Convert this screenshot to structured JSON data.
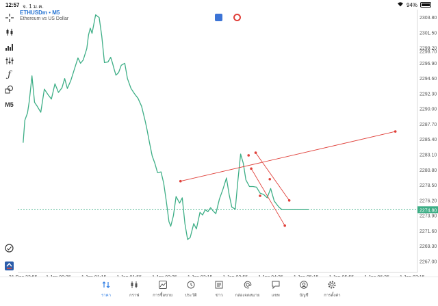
{
  "status_bar": {
    "time": "12:57",
    "date": "จ. 1 ม.ค.",
    "battery": "94%"
  },
  "symbol": {
    "name": "ETHUSDm • M5",
    "description": "Ethereum vs US Dollar"
  },
  "left_tools": [
    "crosshair-icon",
    "candles-icon",
    "bar-style-icon",
    "indicators-icon",
    "function-icon",
    "objects-icon",
    "timeframe-label"
  ],
  "timeframe": "M5",
  "chart_data": {
    "type": "line",
    "title": "",
    "color": "#3dae86",
    "current_price": "2274.80",
    "current_price_value": 2274.8,
    "ylim": [
      2265.95,
      2305.0
    ],
    "y_ticks": [
      "2303.80",
      "2301.50",
      "2299.20",
      "2298.70",
      "2296.90",
      "2294.60",
      "2292.30",
      "2290.00",
      "2287.70",
      "2285.40",
      "2283.10",
      "2280.80",
      "2278.50",
      "2276.20",
      "2273.90",
      "2271.60",
      "2269.30",
      "2267.00"
    ],
    "y_tick_values": [
      2303.8,
      2301.5,
      2299.2,
      2298.7,
      2296.9,
      2294.6,
      2292.3,
      2290.0,
      2287.7,
      2285.4,
      2283.1,
      2280.8,
      2278.5,
      2276.2,
      2273.9,
      2271.6,
      2269.3,
      2267.0
    ],
    "x_ticks": [
      "31 Dec 23:55",
      "1 Jan 00:35",
      "1 Jan 01:15",
      "1 Jan 01:55",
      "1 Jan 02:35",
      "1 Jan 03:15",
      "1 Jan 03:55",
      "1 Jan 04:35",
      "1 Jan 05:15",
      "1 Jan 05:55",
      "1 Jan 06:35",
      "1 Jan 07:15"
    ],
    "x_tick_values": [
      0,
      40,
      80,
      120,
      160,
      200,
      240,
      280,
      320,
      360,
      400,
      440
    ],
    "xlim": [
      -6,
      446
    ],
    "series": [
      {
        "x": [
          0,
          2,
          5,
          7,
          10,
          13,
          16,
          20,
          24,
          28,
          32,
          36,
          40,
          44,
          47,
          50,
          54,
          58,
          62,
          65,
          68,
          72,
          74,
          76,
          78,
          82,
          86,
          89,
          92,
          96,
          99,
          101,
          103,
          105,
          108,
          111,
          115,
          118,
          122,
          126,
          130,
          134,
          138,
          140,
          143,
          146,
          149,
          152,
          156,
          159,
          162,
          165,
          167,
          170,
          173,
          177,
          180,
          183,
          186,
          189,
          193,
          196,
          200,
          203,
          206,
          209,
          212,
          215,
          218,
          222,
          226,
          230,
          233,
          236,
          240,
          243,
          246,
          249,
          252,
          256,
          260,
          264,
          268,
          272,
          276,
          280,
          284,
          288,
          290,
          292,
          294,
          298,
          302,
          306,
          308,
          310,
          313,
          317,
          320,
          323
        ],
        "y": [
          2284.9,
          2288.3,
          2289.4,
          2291.2,
          2295.0,
          2291.0,
          2290.4,
          2289.5,
          2293.0,
          2292.2,
          2291.5,
          2293.8,
          2292.5,
          2293.2,
          2294.6,
          2293.1,
          2294.3,
          2296.0,
          2297.7,
          2296.9,
          2297.4,
          2299.1,
          2301.2,
          2302.2,
          2301.4,
          2304.2,
          2303.8,
          2301.0,
          2297.0,
          2297.1,
          2297.8,
          2297.0,
          2296.0,
          2295.1,
          2295.5,
          2296.6,
          2296.9,
          2294.6,
          2293.1,
          2292.3,
          2291.6,
          2290.4,
          2288.2,
          2287.0,
          2284.9,
          2282.9,
          2281.8,
          2280.4,
          2280.5,
          2278.8,
          2276.0,
          2273.0,
          2272.3,
          2273.9,
          2276.8,
          2275.8,
          2276.6,
          2272.7,
          2270.3,
          2270.6,
          2272.7,
          2271.9,
          2274.4,
          2274.0,
          2274.8,
          2274.5,
          2275.1,
          2274.6,
          2274.2,
          2276.4,
          2277.9,
          2279.6,
          2277.1,
          2275.2,
          2274.9,
          2279.3,
          2283.2,
          2281.8,
          2279.3,
          2278.3,
          2278.3,
          2278.2,
          2277.3,
          2277.1,
          2276.6,
          2278.0,
          2276.1,
          2275.4,
          2275.1,
          2274.9,
          2274.8,
          2274.8,
          2274.8,
          2274.8,
          2274.8,
          2274.8,
          2274.8,
          2274.8,
          2274.8,
          2274.8
        ]
      }
    ],
    "trendlines": [
      {
        "from": [
          178,
          2279.1
        ],
        "to": [
          421,
          2286.6
        ]
      },
      {
        "from": [
          263,
          2283.4
        ],
        "to": [
          301,
          2276.2
        ]
      },
      {
        "from": [
          258,
          2281.0
        ],
        "to": [
          296,
          2272.4
        ]
      }
    ],
    "trendline_color": "#e0403a",
    "trendline_points": [
      [
        178,
        2279.1
      ],
      [
        255,
        2283.0
      ],
      [
        263,
        2283.4
      ],
      [
        421,
        2286.6
      ],
      [
        258,
        2281.0
      ],
      [
        279,
        2279.4
      ],
      [
        268,
        2276.9
      ],
      [
        301,
        2276.2
      ],
      [
        296,
        2272.4
      ]
    ]
  },
  "bottom_nav": [
    {
      "label": "ราคา",
      "icon": "price-icon",
      "active": true
    },
    {
      "label": "กราฟ",
      "icon": "chart-icon",
      "active": false
    },
    {
      "label": "การซื้อขาย",
      "icon": "trade-icon",
      "active": false
    },
    {
      "label": "ประวัติ",
      "icon": "history-icon",
      "active": false
    },
    {
      "label": "ข่าว",
      "icon": "news-icon",
      "active": false
    },
    {
      "label": "กล่องจดหมาย",
      "icon": "mailbox-icon",
      "active": false
    },
    {
      "label": "แชท",
      "icon": "chat-icon",
      "active": false
    },
    {
      "label": "บัญชี",
      "icon": "account-icon",
      "active": false
    },
    {
      "label": "การตั้งค่า",
      "icon": "settings-icon",
      "active": false
    }
  ]
}
